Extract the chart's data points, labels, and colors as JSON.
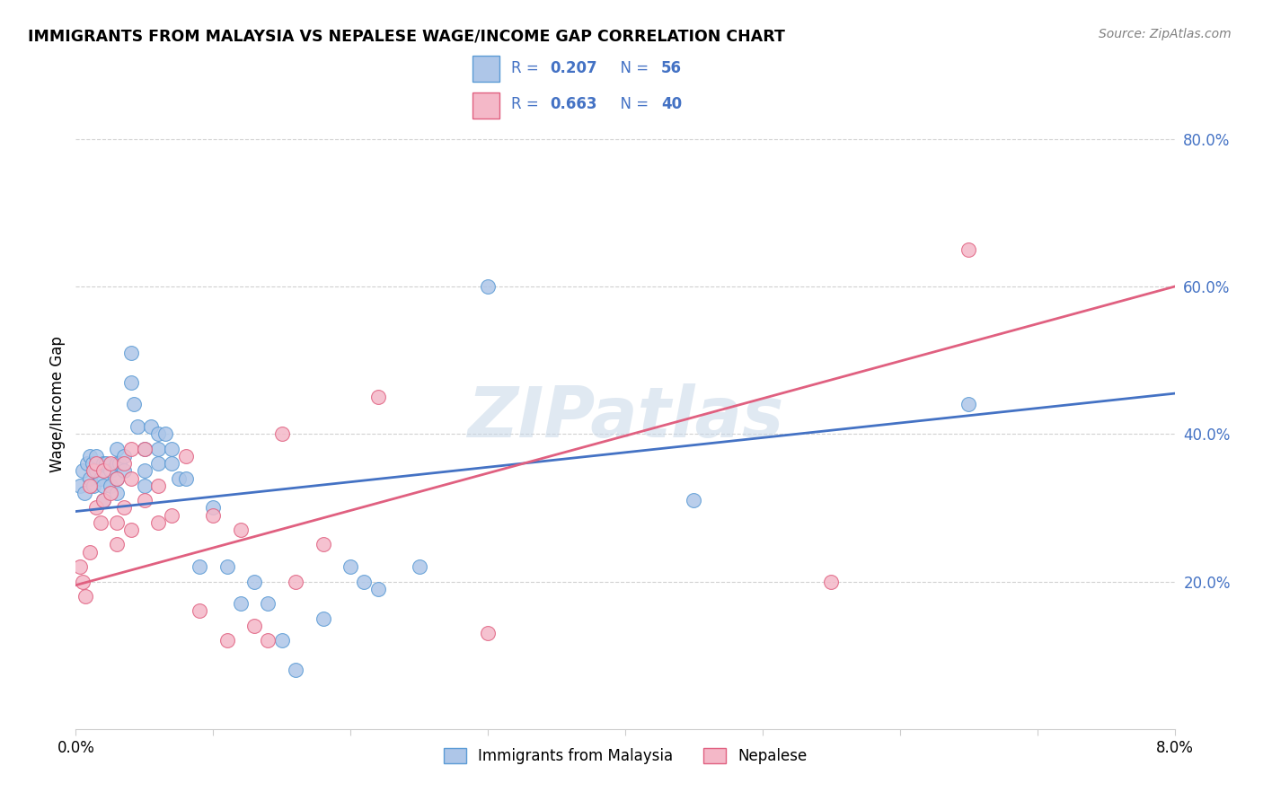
{
  "title": "IMMIGRANTS FROM MALAYSIA VS NEPALESE WAGE/INCOME GAP CORRELATION CHART",
  "source": "Source: ZipAtlas.com",
  "ylabel": "Wage/Income Gap",
  "xlim": [
    0.0,
    0.08
  ],
  "ylim": [
    0.0,
    0.88
  ],
  "yticks": [
    0.2,
    0.4,
    0.6,
    0.8
  ],
  "ytick_labels": [
    "20.0%",
    "40.0%",
    "60.0%",
    "80.0%"
  ],
  "xticks": [
    0.0,
    0.01,
    0.02,
    0.03,
    0.04,
    0.05,
    0.06,
    0.07,
    0.08
  ],
  "grid_color": "#cccccc",
  "watermark": "ZIPatlas",
  "series1": {
    "name": "Immigrants from Malaysia",
    "color": "#aec6e8",
    "edge_color": "#5b9bd5",
    "line_color": "#4472c4",
    "R_label": "0.207",
    "N_label": "56",
    "x": [
      0.0003,
      0.0005,
      0.0006,
      0.0008,
      0.001,
      0.001,
      0.0012,
      0.0013,
      0.0015,
      0.0015,
      0.0018,
      0.002,
      0.002,
      0.002,
      0.0022,
      0.0025,
      0.0025,
      0.003,
      0.003,
      0.003,
      0.003,
      0.0032,
      0.0035,
      0.0035,
      0.004,
      0.004,
      0.0042,
      0.0045,
      0.005,
      0.005,
      0.005,
      0.0055,
      0.006,
      0.006,
      0.006,
      0.0065,
      0.007,
      0.007,
      0.0075,
      0.008,
      0.009,
      0.01,
      0.011,
      0.012,
      0.013,
      0.014,
      0.015,
      0.016,
      0.018,
      0.02,
      0.021,
      0.022,
      0.025,
      0.03,
      0.045,
      0.065
    ],
    "y": [
      0.33,
      0.35,
      0.32,
      0.36,
      0.37,
      0.34,
      0.36,
      0.33,
      0.37,
      0.35,
      0.34,
      0.36,
      0.33,
      0.31,
      0.36,
      0.35,
      0.33,
      0.38,
      0.36,
      0.34,
      0.32,
      0.36,
      0.37,
      0.35,
      0.51,
      0.47,
      0.44,
      0.41,
      0.38,
      0.35,
      0.33,
      0.41,
      0.4,
      0.38,
      0.36,
      0.4,
      0.38,
      0.36,
      0.34,
      0.34,
      0.22,
      0.3,
      0.22,
      0.17,
      0.2,
      0.17,
      0.12,
      0.08,
      0.15,
      0.22,
      0.2,
      0.19,
      0.22,
      0.6,
      0.31,
      0.44
    ]
  },
  "series2": {
    "name": "Nepalese",
    "color": "#f4b8c8",
    "edge_color": "#e06080",
    "line_color": "#e06080",
    "R_label": "0.663",
    "N_label": "40",
    "x": [
      0.0003,
      0.0005,
      0.0007,
      0.001,
      0.001,
      0.0013,
      0.0015,
      0.0015,
      0.0018,
      0.002,
      0.002,
      0.0025,
      0.0025,
      0.003,
      0.003,
      0.003,
      0.0035,
      0.0035,
      0.004,
      0.004,
      0.004,
      0.005,
      0.005,
      0.006,
      0.006,
      0.007,
      0.008,
      0.009,
      0.01,
      0.011,
      0.012,
      0.013,
      0.014,
      0.015,
      0.016,
      0.018,
      0.022,
      0.03,
      0.055,
      0.065
    ],
    "y": [
      0.22,
      0.2,
      0.18,
      0.33,
      0.24,
      0.35,
      0.36,
      0.3,
      0.28,
      0.35,
      0.31,
      0.36,
      0.32,
      0.34,
      0.28,
      0.25,
      0.36,
      0.3,
      0.38,
      0.34,
      0.27,
      0.38,
      0.31,
      0.33,
      0.28,
      0.29,
      0.37,
      0.16,
      0.29,
      0.12,
      0.27,
      0.14,
      0.12,
      0.4,
      0.2,
      0.25,
      0.45,
      0.13,
      0.2,
      0.65
    ]
  }
}
